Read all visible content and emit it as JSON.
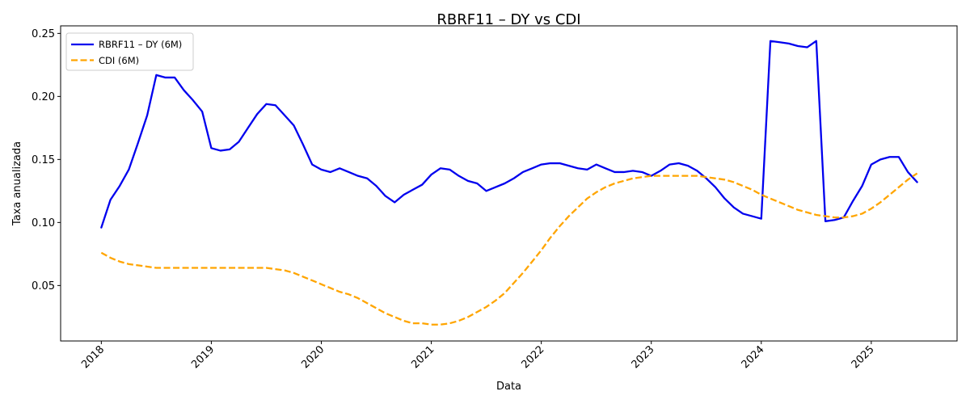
{
  "chart_data": {
    "type": "line",
    "title": "RBRF11 – DY vs CDI",
    "xlabel": "Data",
    "ylabel": "Taxa anualizada",
    "xlim": [
      2017.63,
      2025.78
    ],
    "ylim": [
      0.006,
      0.256
    ],
    "yticks": [
      0.05,
      0.1,
      0.15,
      0.2,
      0.25
    ],
    "ytick_labels": [
      "0.05",
      "0.10",
      "0.15",
      "0.20",
      "0.25"
    ],
    "xticks": [
      2018,
      2019,
      2020,
      2021,
      2022,
      2023,
      2024,
      2025
    ],
    "xtick_labels": [
      "2018",
      "2019",
      "2020",
      "2021",
      "2022",
      "2023",
      "2024",
      "2025"
    ],
    "grid": false,
    "legend_position": "top-left",
    "series": [
      {
        "name": "RBRF11 – DY (6M)",
        "color": "#0000ee",
        "style": "solid",
        "x": [
          2018.0,
          2018.083,
          2018.167,
          2018.25,
          2018.333,
          2018.417,
          2018.5,
          2018.583,
          2018.667,
          2018.75,
          2018.833,
          2018.917,
          2019.0,
          2019.083,
          2019.167,
          2019.25,
          2019.333,
          2019.417,
          2019.5,
          2019.583,
          2019.667,
          2019.75,
          2019.833,
          2019.917,
          2020.0,
          2020.083,
          2020.167,
          2020.25,
          2020.333,
          2020.417,
          2020.5,
          2020.583,
          2020.667,
          2020.75,
          2020.833,
          2020.917,
          2021.0,
          2021.083,
          2021.167,
          2021.25,
          2021.333,
          2021.417,
          2021.5,
          2021.583,
          2021.667,
          2021.75,
          2021.833,
          2021.917,
          2022.0,
          2022.083,
          2022.167,
          2022.25,
          2022.333,
          2022.417,
          2022.5,
          2022.583,
          2022.667,
          2022.75,
          2022.833,
          2022.917,
          2023.0,
          2023.083,
          2023.167,
          2023.25,
          2023.333,
          2023.417,
          2023.5,
          2023.583,
          2023.667,
          2023.75,
          2023.833,
          2023.917,
          2024.0,
          2024.083,
          2024.167,
          2024.25,
          2024.333,
          2024.417,
          2024.5,
          2024.583,
          2024.667,
          2024.75,
          2024.833,
          2024.917,
          2025.0,
          2025.083,
          2025.167,
          2025.25,
          2025.333,
          2025.417
        ],
        "values": [
          0.096,
          0.118,
          0.129,
          0.142,
          0.163,
          0.185,
          0.217,
          0.215,
          0.215,
          0.205,
          0.197,
          0.188,
          0.159,
          0.157,
          0.158,
          0.164,
          0.175,
          0.186,
          0.194,
          0.193,
          0.185,
          0.177,
          0.162,
          0.146,
          0.142,
          0.14,
          0.143,
          0.14,
          0.137,
          0.135,
          0.129,
          0.121,
          0.116,
          0.122,
          0.126,
          0.13,
          0.138,
          0.143,
          0.142,
          0.137,
          0.133,
          0.131,
          0.125,
          0.128,
          0.131,
          0.135,
          0.14,
          0.143,
          0.146,
          0.147,
          0.147,
          0.145,
          0.143,
          0.142,
          0.146,
          0.143,
          0.14,
          0.14,
          0.141,
          0.14,
          0.137,
          0.141,
          0.146,
          0.147,
          0.145,
          0.141,
          0.135,
          0.128,
          0.119,
          0.112,
          0.107,
          0.105,
          0.103,
          0.244,
          0.243,
          0.242,
          0.24,
          0.239,
          0.244,
          0.101,
          0.102,
          0.104,
          0.117,
          0.129,
          0.146,
          0.15,
          0.152,
          0.152,
          0.14,
          0.132
        ]
      },
      {
        "name": "CDI (6M)",
        "color": "#ffa500",
        "style": "dashed",
        "x": [
          2018.0,
          2018.083,
          2018.167,
          2018.25,
          2018.333,
          2018.417,
          2018.5,
          2018.583,
          2018.667,
          2018.75,
          2018.833,
          2018.917,
          2019.0,
          2019.083,
          2019.167,
          2019.25,
          2019.333,
          2019.417,
          2019.5,
          2019.583,
          2019.667,
          2019.75,
          2019.833,
          2019.917,
          2020.0,
          2020.083,
          2020.167,
          2020.25,
          2020.333,
          2020.417,
          2020.5,
          2020.583,
          2020.667,
          2020.75,
          2020.833,
          2020.917,
          2021.0,
          2021.083,
          2021.167,
          2021.25,
          2021.333,
          2021.417,
          2021.5,
          2021.583,
          2021.667,
          2021.75,
          2021.833,
          2021.917,
          2022.0,
          2022.083,
          2022.167,
          2022.25,
          2022.333,
          2022.417,
          2022.5,
          2022.583,
          2022.667,
          2022.75,
          2022.833,
          2022.917,
          2023.0,
          2023.083,
          2023.167,
          2023.25,
          2023.333,
          2023.417,
          2023.5,
          2023.583,
          2023.667,
          2023.75,
          2023.833,
          2023.917,
          2024.0,
          2024.083,
          2024.167,
          2024.25,
          2024.333,
          2024.417,
          2024.5,
          2024.583,
          2024.667,
          2024.75,
          2024.833,
          2024.917,
          2025.0,
          2025.083,
          2025.167,
          2025.25,
          2025.333,
          2025.417
        ],
        "values": [
          0.076,
          0.072,
          0.069,
          0.067,
          0.066,
          0.065,
          0.064,
          0.064,
          0.064,
          0.064,
          0.064,
          0.064,
          0.064,
          0.064,
          0.064,
          0.064,
          0.064,
          0.064,
          0.064,
          0.063,
          0.062,
          0.06,
          0.057,
          0.054,
          0.051,
          0.048,
          0.045,
          0.043,
          0.04,
          0.036,
          0.032,
          0.028,
          0.025,
          0.022,
          0.02,
          0.02,
          0.019,
          0.019,
          0.02,
          0.022,
          0.025,
          0.029,
          0.033,
          0.038,
          0.044,
          0.052,
          0.06,
          0.069,
          0.078,
          0.088,
          0.097,
          0.105,
          0.112,
          0.119,
          0.124,
          0.128,
          0.131,
          0.133,
          0.135,
          0.136,
          0.137,
          0.137,
          0.137,
          0.137,
          0.137,
          0.137,
          0.136,
          0.135,
          0.134,
          0.132,
          0.129,
          0.126,
          0.122,
          0.119,
          0.116,
          0.113,
          0.11,
          0.108,
          0.106,
          0.105,
          0.104,
          0.104,
          0.105,
          0.107,
          0.111,
          0.116,
          0.122,
          0.128,
          0.134,
          0.139
        ]
      }
    ]
  }
}
